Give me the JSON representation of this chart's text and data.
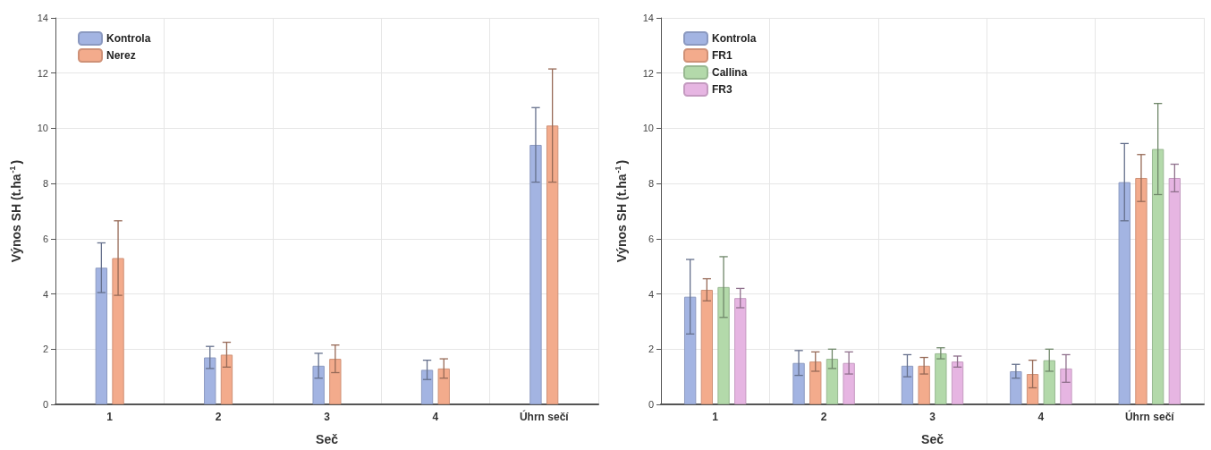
{
  "chart_data": [
    {
      "type": "bar",
      "xlabel": "Seč",
      "ylabel": "Výnos SH (t.ha$^{-1}$)",
      "categories": [
        "1",
        "2",
        "3",
        "4",
        "Úhrn sečí"
      ],
      "ylim": [
        0,
        14
      ],
      "yticks": [
        0,
        2,
        4,
        6,
        8,
        10,
        12,
        14
      ],
      "grid": true,
      "legend": "top left",
      "series": [
        {
          "name": "Kontrola",
          "color": "#a3b4e2",
          "values": [
            4.95,
            1.7,
            1.4,
            1.25,
            9.4
          ],
          "errors": [
            0.9,
            0.4,
            0.45,
            0.35,
            1.35
          ]
        },
        {
          "name": "Nerez",
          "color": "#f3ab8c",
          "values": [
            5.3,
            1.8,
            1.65,
            1.3,
            10.1
          ],
          "errors": [
            1.35,
            0.45,
            0.5,
            0.35,
            2.05
          ]
        }
      ]
    },
    {
      "type": "bar",
      "xlabel": "Seč",
      "ylabel": "Výnos SH (t.ha$^{-1}$)",
      "categories": [
        "1",
        "2",
        "3",
        "4",
        "Úhrn sečí"
      ],
      "ylim": [
        0,
        14
      ],
      "yticks": [
        0,
        2,
        4,
        6,
        8,
        10,
        12,
        14
      ],
      "grid": true,
      "legend": "top left",
      "series": [
        {
          "name": "Kontrola",
          "color": "#a3b4e2",
          "values": [
            3.9,
            1.5,
            1.4,
            1.2,
            8.05
          ],
          "errors": [
            1.35,
            0.45,
            0.4,
            0.25,
            1.4
          ]
        },
        {
          "name": "FR1",
          "color": "#f3ab8c",
          "values": [
            4.15,
            1.55,
            1.4,
            1.1,
            8.2
          ],
          "errors": [
            0.4,
            0.35,
            0.3,
            0.5,
            0.85
          ]
        },
        {
          "name": "Callina",
          "color": "#b3d9aa",
          "values": [
            4.25,
            1.65,
            1.85,
            1.6,
            9.25
          ],
          "errors": [
            1.1,
            0.35,
            0.2,
            0.4,
            1.65
          ]
        },
        {
          "name": "FR3",
          "color": "#e6b5e2",
          "values": [
            3.85,
            1.5,
            1.55,
            1.3,
            8.2
          ],
          "errors": [
            0.35,
            0.4,
            0.2,
            0.5,
            0.5
          ]
        }
      ]
    }
  ]
}
